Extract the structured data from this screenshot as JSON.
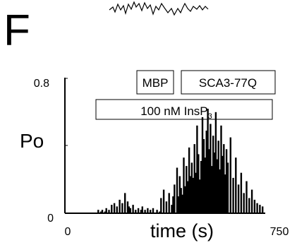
{
  "panel_label": "F",
  "chart_data": {
    "type": "bar",
    "title": "",
    "xlabel": "time (s)",
    "ylabel": "Po",
    "xlim": [
      0,
      750
    ],
    "ylim": [
      0,
      0.8
    ],
    "x_ticks": [
      "0",
      "750"
    ],
    "y_ticks": [
      "0",
      "0.8"
    ],
    "grid": false,
    "annotations": [
      {
        "text": "MBP",
        "x_start": 210,
        "x_end": 310
      },
      {
        "text": "SCA3-77Q",
        "x_start": 330,
        "x_end": 570
      },
      {
        "text_main": "100 nM InsP",
        "text_sub": "3",
        "x_start": 90,
        "x_end": 550
      }
    ],
    "series": [
      {
        "x": [
          125,
          135,
          140,
          150,
          155,
          165,
          175,
          185,
          195,
          205,
          215,
          225,
          235,
          240,
          245,
          255,
          265,
          275,
          285,
          290,
          300,
          310,
          320,
          330,
          345,
          355,
          360,
          370,
          380,
          390,
          400,
          405,
          410,
          420,
          425,
          430,
          435,
          440,
          445,
          450,
          455,
          460,
          465,
          470,
          475,
          480,
          485,
          490,
          495,
          500,
          505,
          510,
          515,
          520,
          525,
          530,
          535,
          540,
          545,
          550,
          555,
          560,
          565,
          570,
          575,
          580,
          585,
          590,
          595,
          600,
          605,
          610,
          620,
          630,
          640,
          650,
          660,
          670,
          680,
          690,
          700,
          710,
          720,
          730,
          740
        ],
        "values": [
          0.02,
          0.01,
          0.02,
          0.01,
          0.03,
          0.02,
          0.05,
          0.06,
          0.04,
          0.08,
          0.06,
          0.12,
          0.07,
          0.04,
          0.03,
          0.05,
          0.02,
          0.03,
          0.02,
          0.04,
          0.02,
          0.03,
          0.02,
          0.03,
          0.02,
          0.01,
          0.09,
          0.14,
          0.07,
          0.12,
          0.05,
          0.1,
          0.17,
          0.27,
          0.1,
          0.22,
          0.15,
          0.11,
          0.33,
          0.16,
          0.28,
          0.19,
          0.39,
          0.22,
          0.3,
          0.21,
          0.41,
          0.24,
          0.52,
          0.35,
          0.2,
          0.31,
          0.57,
          0.44,
          0.33,
          0.49,
          0.62,
          0.38,
          0.53,
          0.28,
          0.46,
          0.36,
          0.6,
          0.32,
          0.43,
          0.26,
          0.52,
          0.34,
          0.41,
          0.23,
          0.38,
          0.3,
          0.45,
          0.21,
          0.33,
          0.17,
          0.24,
          0.12,
          0.19,
          0.09,
          0.14,
          0.08,
          0.06,
          0.05,
          0.04
        ]
      }
    ]
  }
}
